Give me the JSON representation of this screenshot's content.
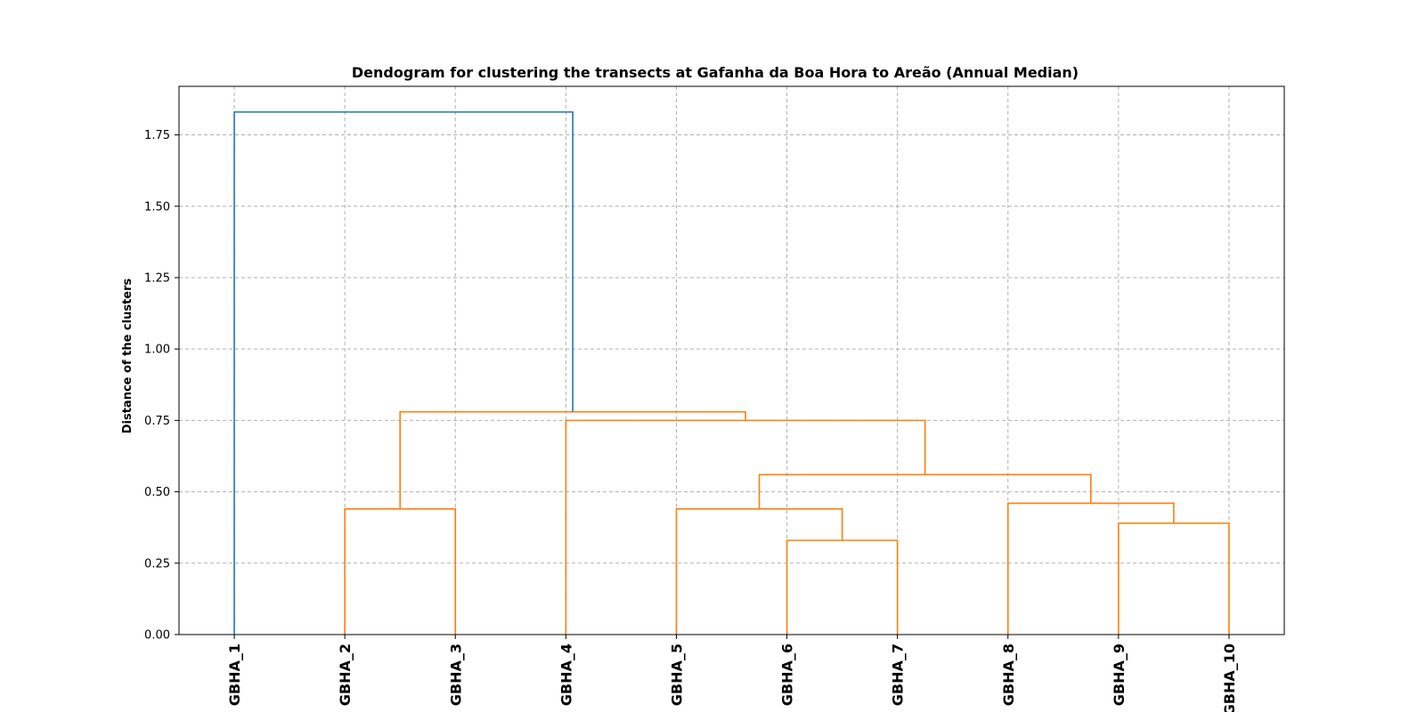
{
  "chart_data": {
    "type": "dendrogram",
    "title": "Dendogram for clustering the transects at Gafanha da Boa Hora to Areão (Annual Median)",
    "xlabel": "",
    "ylabel": "Distance of the clusters",
    "ylim": [
      0,
      1.92
    ],
    "yticks": [
      0.0,
      0.25,
      0.5,
      0.75,
      1.0,
      1.25,
      1.5,
      1.75
    ],
    "ytick_labels": [
      "0.00",
      "0.25",
      "0.50",
      "0.75",
      "1.00",
      "1.25",
      "1.50",
      "1.75"
    ],
    "grid": true,
    "leaves": [
      "GBHA_1",
      "GBHA_2",
      "GBHA_3",
      "GBHA_4",
      "GBHA_5",
      "GBHA_6",
      "GBHA_7",
      "GBHA_8",
      "GBHA_9",
      "GBHA_10"
    ],
    "colors": {
      "above_threshold": "#1f77b4",
      "cluster": "#ff7f0e"
    },
    "merges": [
      {
        "left": "GBHA_6",
        "right": "GBHA_7",
        "height": 0.33,
        "color": "cluster"
      },
      {
        "left": "GBHA_9",
        "right": "GBHA_10",
        "height": 0.39,
        "color": "cluster"
      },
      {
        "left": "GBHA_2",
        "right": "GBHA_3",
        "height": 0.44,
        "color": "cluster"
      },
      {
        "left": "GBHA_5",
        "right": "(GBHA_6, GBHA_7)",
        "height": 0.44,
        "color": "cluster"
      },
      {
        "left": "GBHA_8",
        "right": "(GBHA_9, GBHA_10)",
        "height": 0.46,
        "color": "cluster"
      },
      {
        "left": "(GBHA_5, GBHA_6, GBHA_7)",
        "right": "(GBHA_8, GBHA_9, GBHA_10)",
        "height": 0.56,
        "color": "cluster"
      },
      {
        "left": "GBHA_4",
        "right": "(GBHA_5 … GBHA_10)",
        "height": 0.75,
        "color": "cluster"
      },
      {
        "left": "(GBHA_2, GBHA_3)",
        "right": "(GBHA_4 … GBHA_10)",
        "height": 0.78,
        "color": "cluster"
      },
      {
        "left": "GBHA_1",
        "right": "(GBHA_2 … GBHA_10)",
        "height": 1.83,
        "color": "above_threshold"
      }
    ]
  }
}
